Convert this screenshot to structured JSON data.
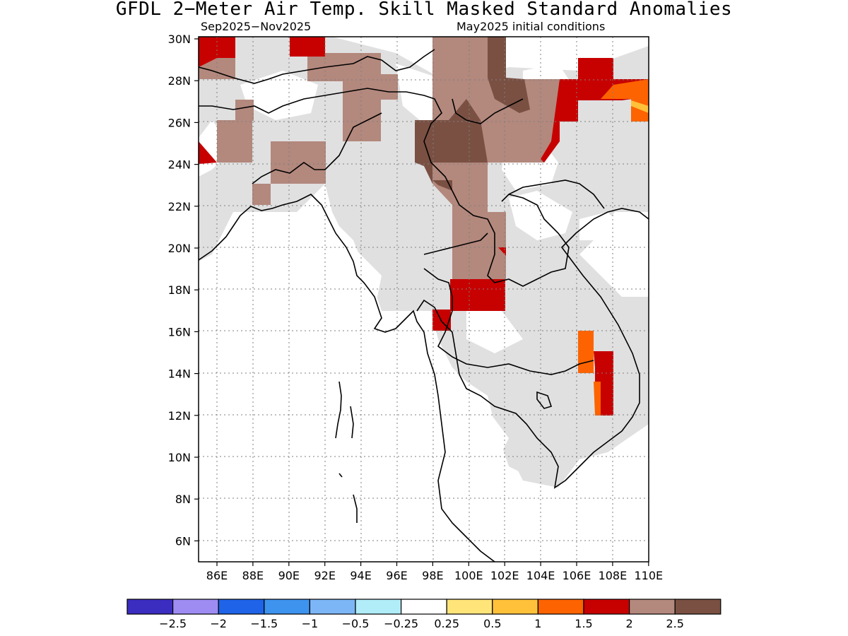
{
  "title": "GFDL 2−Meter Air Temp. Skill Masked Standard Anomalies",
  "subtitle_left": "Sep2025−Nov2025",
  "subtitle_right": "May2025 initial conditions",
  "lat_labels": [
    "30N",
    "28N",
    "26N",
    "24N",
    "22N",
    "20N",
    "18N",
    "16N",
    "14N",
    "12N",
    "10N",
    "8N",
    "6N"
  ],
  "lon_labels": [
    "86E",
    "88E",
    "90E",
    "92E",
    "94E",
    "96E",
    "98E",
    "100E",
    "102E",
    "104E",
    "106E",
    "108E",
    "110E"
  ],
  "colorbar": {
    "colors": [
      "#3b2dbf",
      "#9e8cf3",
      "#1f64e8",
      "#3d93ee",
      "#7cb6f6",
      "#b0edf8",
      "#ffffff",
      "#ffe47a",
      "#ffc13a",
      "#fd6300",
      "#c70000",
      "#b3887d",
      "#7a5043"
    ],
    "labels": [
      "−2.5",
      "−2",
      "−1.5",
      "−1",
      "−0.5",
      "−0.25",
      "0.25",
      "0.5",
      "1",
      "1.5",
      "2",
      "2.5"
    ]
  },
  "legend_meaning": {
    "gray": "#e0e0e0"
  }
}
